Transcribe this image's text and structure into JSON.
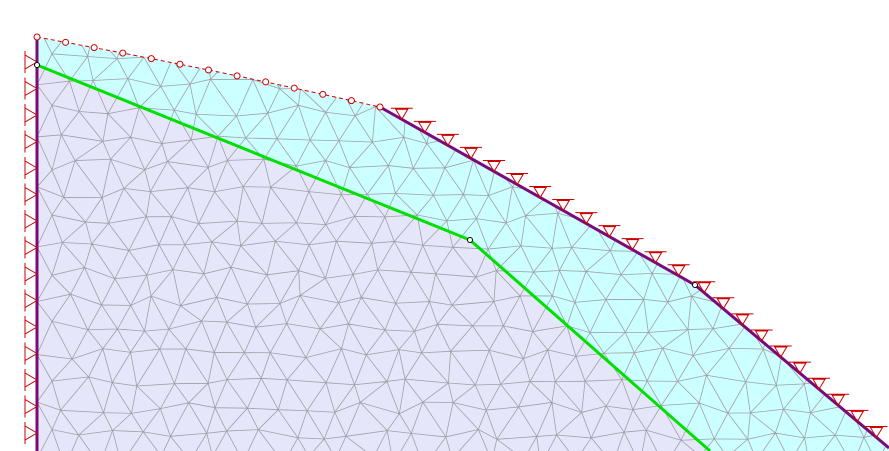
{
  "canvas": {
    "background": "#ffffff",
    "colors": {
      "upper_zone_fill": "#ccffff",
      "lower_zone_fill": "#e6e6fa",
      "mesh_lines": "#a0a0a8",
      "boundary_line": "#7a0a7a",
      "interface_line": "#00e000",
      "supports": "#cc0000",
      "free_surface_nodes": "#cc0000"
    },
    "icons": [
      "fixed-support-icon",
      "roller-support-icon",
      "node-marker-icon"
    ]
  }
}
